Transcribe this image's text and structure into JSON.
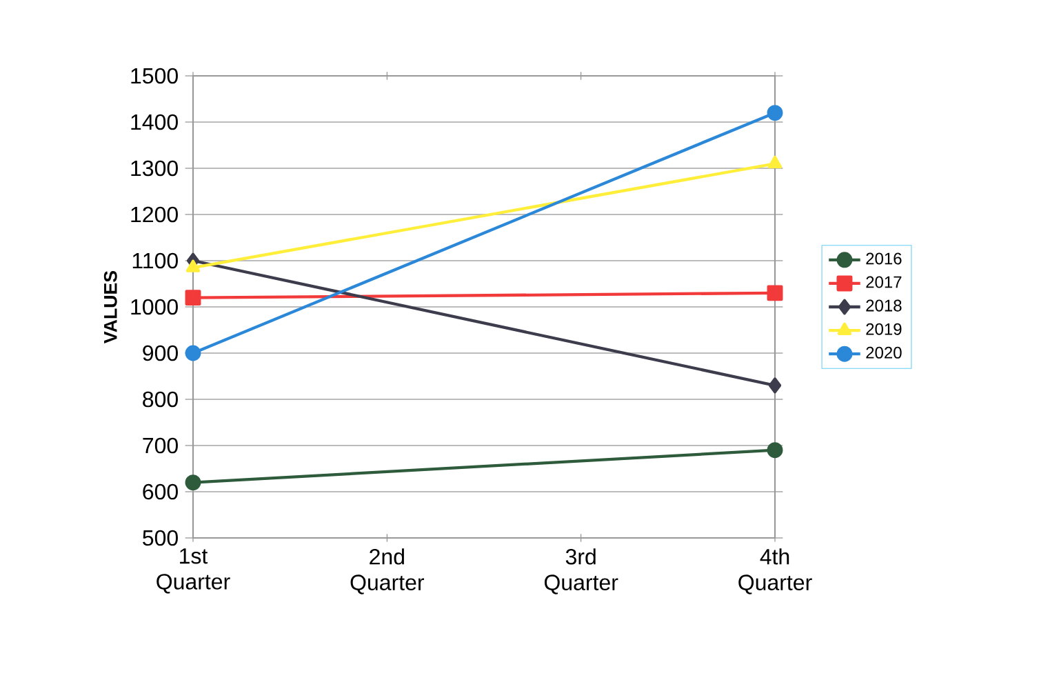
{
  "chart_data": {
    "type": "line",
    "ylabel": "VALUES",
    "categories": [
      "1st Quarter",
      "2nd Quarter",
      "3rd Quarter",
      "4th Quarter"
    ],
    "series": [
      {
        "name": "2016",
        "color": "#2e5b3c",
        "marker": "circle",
        "values": [
          620,
          null,
          null,
          690
        ]
      },
      {
        "name": "2017",
        "color": "#f23a3a",
        "marker": "square",
        "values": [
          1020,
          null,
          null,
          1030
        ]
      },
      {
        "name": "2018",
        "color": "#3c3c4c",
        "marker": "diamond",
        "values": [
          1100,
          null,
          null,
          830
        ]
      },
      {
        "name": "2019",
        "color": "#ffee3a",
        "marker": "triangle",
        "values": [
          1085,
          null,
          null,
          1310
        ]
      },
      {
        "name": "2020",
        "color": "#2b88d8",
        "marker": "circle",
        "values": [
          900,
          null,
          null,
          1420
        ]
      }
    ],
    "ylim": [
      500,
      1500
    ],
    "yticks": [
      500,
      600,
      700,
      800,
      900,
      1000,
      1100,
      1200,
      1300,
      1400,
      1500
    ],
    "grid": "y",
    "legend": "right"
  }
}
